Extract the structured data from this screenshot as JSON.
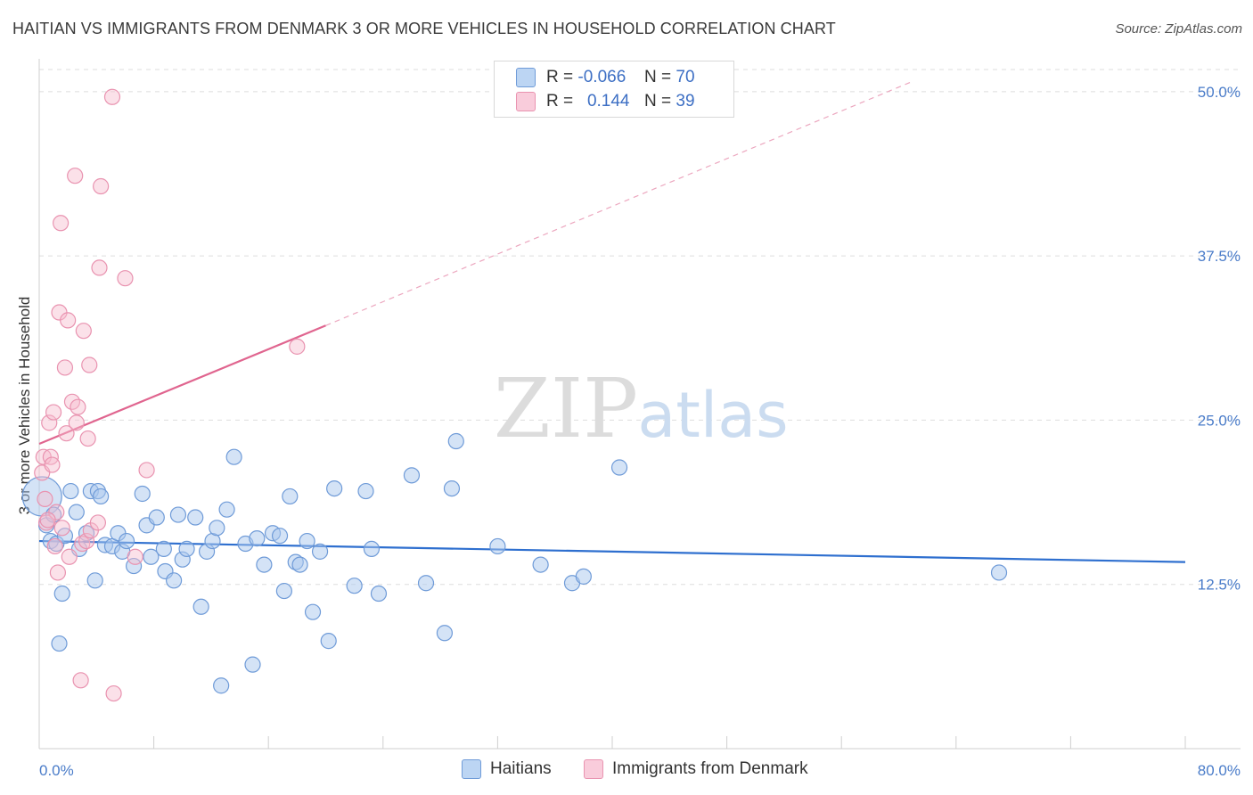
{
  "title": "HAITIAN VS IMMIGRANTS FROM DENMARK 3 OR MORE VEHICLES IN HOUSEHOLD CORRELATION CHART",
  "source": "Source: ZipAtlas.com",
  "watermark": {
    "zip": "ZIP",
    "atlas": "atlas"
  },
  "legend": {
    "rows": [
      {
        "r_label": "R =",
        "r_value": "-0.066",
        "n_label": "N =",
        "n_value": "70"
      },
      {
        "r_label": "R =",
        "r_value": "0.144",
        "n_label": "N =",
        "n_value": "39"
      }
    ]
  },
  "bottom_legend": {
    "haitians": "Haitians",
    "denmark": "Immigrants from Denmark"
  },
  "colors": {
    "blue_fill": "#a9c8ee",
    "blue_stroke": "#6f9bd8",
    "blue_line": "#2e6fcf",
    "pink_fill": "#f6bccf",
    "pink_stroke": "#e993b0",
    "pink_line": "#e0658f",
    "tick_text": "#4a7cc9",
    "grid": "#dedede"
  },
  "chart_data": {
    "type": "scatter",
    "title": "HAITIAN VS IMMIGRANTS FROM DENMARK 3 OR MORE VEHICLES IN HOUSEHOLD CORRELATION CHART",
    "xlabel": "",
    "ylabel": "3 or more Vehicles in Household",
    "xlim": [
      0,
      80
    ],
    "ylim": [
      0,
      52.5
    ],
    "x_tick_labels": [
      "0.0%",
      "80.0%"
    ],
    "y_ticks": [
      12.5,
      25.0,
      37.5,
      50.0
    ],
    "y_tick_labels": [
      "12.5%",
      "25.0%",
      "37.5%",
      "50.0%"
    ],
    "grid": true,
    "legend_position": "top-center",
    "series": [
      {
        "name": "Haitians",
        "r": -0.066,
        "n": 70,
        "trend": {
          "x": [
            0,
            80
          ],
          "y": [
            15.8,
            14.2
          ]
        },
        "points": [
          [
            0.2,
            19.2
          ],
          [
            0.5,
            17.0
          ],
          [
            0.8,
            15.8
          ],
          [
            1.0,
            17.8
          ],
          [
            1.2,
            15.6
          ],
          [
            1.4,
            8.0
          ],
          [
            1.6,
            11.8
          ],
          [
            1.8,
            16.2
          ],
          [
            2.2,
            19.6
          ],
          [
            2.6,
            18.0
          ],
          [
            2.8,
            15.2
          ],
          [
            3.3,
            16.4
          ],
          [
            3.6,
            19.6
          ],
          [
            3.9,
            12.8
          ],
          [
            4.1,
            19.6
          ],
          [
            4.3,
            19.2
          ],
          [
            4.6,
            15.5
          ],
          [
            5.1,
            15.4
          ],
          [
            5.5,
            16.4
          ],
          [
            5.8,
            15.0
          ],
          [
            6.1,
            15.8
          ],
          [
            6.6,
            13.9
          ],
          [
            7.2,
            19.4
          ],
          [
            7.5,
            17.0
          ],
          [
            7.8,
            14.6
          ],
          [
            8.2,
            17.6
          ],
          [
            8.7,
            15.2
          ],
          [
            8.8,
            13.5
          ],
          [
            9.4,
            12.8
          ],
          [
            9.7,
            17.8
          ],
          [
            10.0,
            14.4
          ],
          [
            10.3,
            15.2
          ],
          [
            10.9,
            17.6
          ],
          [
            11.3,
            10.8
          ],
          [
            11.7,
            15.0
          ],
          [
            12.1,
            15.8
          ],
          [
            12.4,
            16.8
          ],
          [
            12.7,
            4.8
          ],
          [
            13.1,
            18.2
          ],
          [
            13.6,
            22.2
          ],
          [
            14.4,
            15.6
          ],
          [
            14.9,
            6.4
          ],
          [
            15.2,
            16.0
          ],
          [
            15.7,
            14.0
          ],
          [
            16.3,
            16.4
          ],
          [
            16.8,
            16.2
          ],
          [
            17.1,
            12.0
          ],
          [
            17.5,
            19.2
          ],
          [
            17.9,
            14.2
          ],
          [
            18.2,
            14.0
          ],
          [
            18.7,
            15.8
          ],
          [
            19.1,
            10.4
          ],
          [
            19.6,
            15.0
          ],
          [
            20.2,
            8.2
          ],
          [
            20.6,
            19.8
          ],
          [
            22.0,
            12.4
          ],
          [
            22.8,
            19.6
          ],
          [
            23.2,
            15.2
          ],
          [
            23.7,
            11.8
          ],
          [
            26.0,
            20.8
          ],
          [
            27.0,
            12.6
          ],
          [
            28.3,
            8.8
          ],
          [
            28.8,
            19.8
          ],
          [
            29.1,
            23.4
          ],
          [
            32.0,
            15.4
          ],
          [
            35.0,
            14.0
          ],
          [
            37.2,
            12.6
          ],
          [
            38.0,
            13.1
          ],
          [
            40.5,
            21.4
          ],
          [
            67.0,
            13.4
          ]
        ]
      },
      {
        "name": "Immigrants from Denmark",
        "r": 0.144,
        "n": 39,
        "trend": {
          "x": [
            0,
            20
          ],
          "y": [
            23.2,
            32.2
          ]
        },
        "trend_dashed": {
          "x": [
            20,
            61
          ],
          "y": [
            32.2,
            50.8
          ]
        },
        "points": [
          [
            0.2,
            21.0
          ],
          [
            0.3,
            22.2
          ],
          [
            0.4,
            19.0
          ],
          [
            0.5,
            17.2
          ],
          [
            0.7,
            24.8
          ],
          [
            0.8,
            22.2
          ],
          [
            0.9,
            21.6
          ],
          [
            1.0,
            25.6
          ],
          [
            1.1,
            15.4
          ],
          [
            1.2,
            18.0
          ],
          [
            1.3,
            13.4
          ],
          [
            1.4,
            33.2
          ],
          [
            1.5,
            40.0
          ],
          [
            1.6,
            16.8
          ],
          [
            1.8,
            29.0
          ],
          [
            1.9,
            24.0
          ],
          [
            2.0,
            32.6
          ],
          [
            2.1,
            14.6
          ],
          [
            2.3,
            26.4
          ],
          [
            2.5,
            43.6
          ],
          [
            2.6,
            24.8
          ],
          [
            2.7,
            26.0
          ],
          [
            2.9,
            5.2
          ],
          [
            3.0,
            15.6
          ],
          [
            3.1,
            31.8
          ],
          [
            3.3,
            15.8
          ],
          [
            3.4,
            23.6
          ],
          [
            3.5,
            29.2
          ],
          [
            3.6,
            16.6
          ],
          [
            4.1,
            17.2
          ],
          [
            4.2,
            36.6
          ],
          [
            4.3,
            42.8
          ],
          [
            5.1,
            49.6
          ],
          [
            5.2,
            4.2
          ],
          [
            6.0,
            35.8
          ],
          [
            6.7,
            14.6
          ],
          [
            7.5,
            21.2
          ],
          [
            18.0,
            30.6
          ],
          [
            0.6,
            17.4
          ]
        ]
      }
    ]
  }
}
